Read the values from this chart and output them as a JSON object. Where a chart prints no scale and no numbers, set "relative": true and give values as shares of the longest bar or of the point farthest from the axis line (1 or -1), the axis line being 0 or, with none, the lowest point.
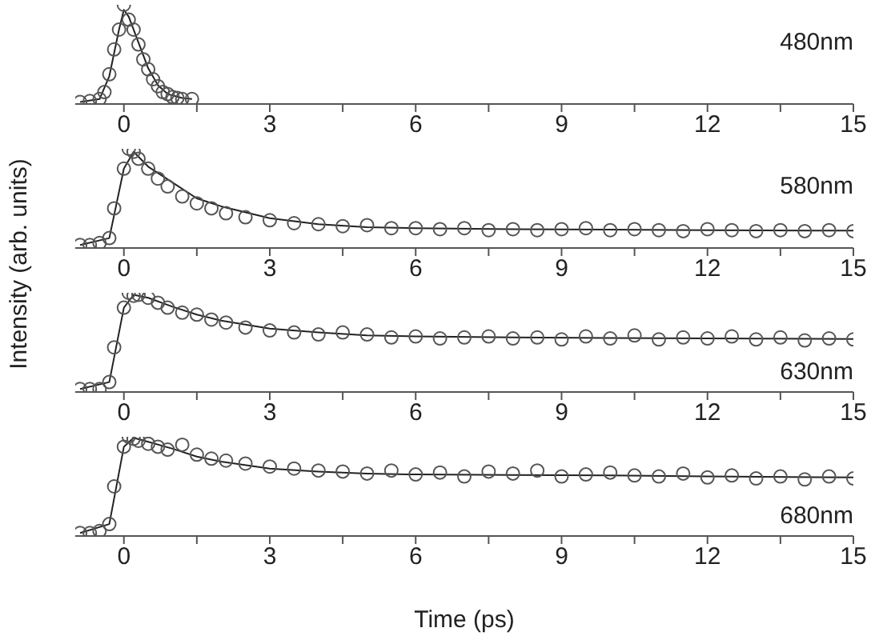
{
  "chart_data": [
    {
      "type": "scatter",
      "relative": true,
      "xlim": [
        -1,
        15
      ],
      "xticks": [
        0,
        {
          "value": 1.5,
          "label": null
        },
        3,
        {
          "value": 4.5,
          "label": null
        },
        6,
        {
          "value": 7.5,
          "label": null
        },
        9,
        {
          "value": 10.5,
          "label": null
        },
        12,
        {
          "value": 13.5,
          "label": null
        },
        15
      ],
      "tick_labels": "x",
      "grid": false,
      "legend": false,
      "annotations": [
        "480nm"
      ],
      "series": [
        {
          "color": "#555555",
          "marker": "circle",
          "x": [
            -0.9,
            -0.7,
            -0.5,
            -0.4,
            -0.3,
            -0.2,
            -0.1,
            0,
            0.1,
            0.2,
            0.3,
            0.4,
            0.5,
            0.6,
            0.7,
            0.8,
            0.9,
            1.0,
            1.1,
            1.2,
            1.4
          ],
          "values": [
            0.02,
            0.03,
            0.05,
            0.12,
            0.3,
            0.55,
            0.75,
            1,
            0.85,
            0.75,
            0.6,
            0.45,
            0.35,
            0.25,
            0.18,
            0.12,
            0.1,
            0.07,
            0.06,
            0.05,
            0.05
          ]
        },
        {
          "type": "line",
          "marker": "none",
          "color": "#222222",
          "x": [
            -0.9,
            -0.5,
            -0.3,
            -0.1,
            0,
            0.1,
            0.3,
            0.5,
            0.7,
            0.9,
            1.2,
            1.4
          ],
          "values": [
            0.02,
            0.05,
            0.28,
            0.75,
            0.95,
            0.88,
            0.62,
            0.36,
            0.19,
            0.1,
            0.06,
            0.05
          ]
        }
      ]
    },
    {
      "type": "scatter",
      "relative": true,
      "xlim": [
        -1,
        15
      ],
      "xticks": [
        0,
        {
          "value": 1.5,
          "label": null
        },
        3,
        {
          "value": 4.5,
          "label": null
        },
        6,
        {
          "value": 7.5,
          "label": null
        },
        9,
        {
          "value": 10.5,
          "label": null
        },
        12,
        {
          "value": 13.5,
          "label": null
        },
        15
      ],
      "tick_labels": "x",
      "grid": false,
      "legend": false,
      "annotations": [
        "580nm"
      ],
      "ylabel": "Intensity (arb. units)",
      "series": [
        {
          "color": "#555555",
          "x": [
            -0.9,
            -0.7,
            -0.5,
            -0.3,
            -0.2,
            0,
            0.1,
            0.2,
            0.3,
            0.5,
            0.7,
            0.9,
            1.2,
            1.5,
            1.8,
            2.1,
            2.5,
            3,
            3.5,
            4,
            4.5,
            5,
            5.5,
            6,
            6.5,
            7,
            7.5,
            8,
            8.5,
            9,
            9.5,
            10,
            10.5,
            11,
            11.5,
            12,
            12.5,
            13,
            13.5,
            14,
            14.5,
            15
          ],
          "marker": "circle",
          "values": [
            0.03,
            0.03,
            0.05,
            0.1,
            0.4,
            0.8,
            1,
            0.97,
            0.9,
            0.8,
            0.7,
            0.62,
            0.52,
            0.45,
            0.4,
            0.35,
            0.31,
            0.28,
            0.25,
            0.24,
            0.22,
            0.23,
            0.2,
            0.2,
            0.19,
            0.2,
            0.18,
            0.19,
            0.18,
            0.19,
            0.2,
            0.18,
            0.19,
            0.18,
            0.17,
            0.19,
            0.18,
            0.17,
            0.18,
            0.17,
            0.18,
            0.17
          ]
        },
        {
          "type": "line",
          "marker": "none",
          "color": "#222222",
          "x": [
            -0.9,
            -0.3,
            0,
            0.2,
            0.5,
            1,
            1.5,
            2,
            3,
            4,
            5,
            6,
            8,
            10,
            12,
            15
          ],
          "values": [
            0.03,
            0.1,
            0.8,
            0.97,
            0.82,
            0.66,
            0.5,
            0.42,
            0.3,
            0.24,
            0.21,
            0.2,
            0.19,
            0.185,
            0.18,
            0.175
          ]
        }
      ]
    },
    {
      "type": "scatter",
      "relative": true,
      "xlim": [
        -1,
        15
      ],
      "xticks": [
        0,
        {
          "value": 1.5,
          "label": null
        },
        3,
        {
          "value": 4.5,
          "label": null
        },
        6,
        {
          "value": 7.5,
          "label": null
        },
        9,
        {
          "value": 10.5,
          "label": null
        },
        12,
        {
          "value": 13.5,
          "label": null
        },
        15
      ],
      "tick_labels": "x",
      "grid": false,
      "legend": false,
      "annotations": [
        "630nm"
      ],
      "series": [
        {
          "color": "#555555",
          "x": [
            -0.9,
            -0.7,
            -0.5,
            -0.3,
            -0.2,
            0,
            0.1,
            0.2,
            0.3,
            0.5,
            0.7,
            0.9,
            1.2,
            1.5,
            1.8,
            2.1,
            2.5,
            3,
            3.5,
            4,
            4.5,
            5,
            5.5,
            6,
            6.5,
            7,
            7.5,
            8,
            8.5,
            9,
            9.5,
            10,
            10.5,
            11,
            11.5,
            12,
            12.5,
            13,
            13.5,
            14,
            14.5,
            15
          ],
          "marker": "circle",
          "values": [
            0.03,
            0.03,
            0.03,
            0.1,
            0.45,
            0.85,
            1,
            0.97,
            0.98,
            0.95,
            0.9,
            0.85,
            0.8,
            0.78,
            0.73,
            0.7,
            0.65,
            0.62,
            0.6,
            0.58,
            0.6,
            0.58,
            0.55,
            0.56,
            0.54,
            0.55,
            0.56,
            0.54,
            0.55,
            0.53,
            0.56,
            0.54,
            0.57,
            0.53,
            0.55,
            0.54,
            0.56,
            0.53,
            0.55,
            0.52,
            0.54,
            0.53
          ]
        },
        {
          "type": "line",
          "marker": "none",
          "color": "#222222",
          "x": [
            -0.9,
            -0.3,
            0,
            0.2,
            0.5,
            1,
            1.5,
            2,
            3,
            4,
            5,
            6,
            8,
            10,
            12,
            15
          ],
          "values": [
            0.03,
            0.1,
            0.85,
            0.98,
            0.95,
            0.86,
            0.78,
            0.72,
            0.64,
            0.6,
            0.57,
            0.56,
            0.55,
            0.545,
            0.54,
            0.535
          ]
        }
      ]
    },
    {
      "type": "scatter",
      "relative": true,
      "xlim": [
        -1,
        15
      ],
      "xticks": [
        0,
        {
          "value": 1.5,
          "label": null
        },
        3,
        {
          "value": 4.5,
          "label": null
        },
        6,
        {
          "value": 7.5,
          "label": null
        },
        9,
        {
          "value": 10.5,
          "label": null
        },
        12,
        {
          "value": 13.5,
          "label": null
        },
        15
      ],
      "tick_labels": "x",
      "grid": false,
      "legend": false,
      "annotations": [
        "680nm"
      ],
      "xlabel": "Time (ps)",
      "series": [
        {
          "color": "#555555",
          "x": [
            -0.9,
            -0.7,
            -0.5,
            -0.3,
            -0.2,
            0,
            0.1,
            0.2,
            0.3,
            0.5,
            0.7,
            0.9,
            1.2,
            1.5,
            1.8,
            2.1,
            2.5,
            3,
            3.5,
            4,
            4.5,
            5,
            5.5,
            6,
            6.5,
            7,
            7.5,
            8,
            8.5,
            9,
            9.5,
            10,
            10.5,
            11,
            11.5,
            12,
            12.5,
            13,
            13.5,
            14,
            14.5,
            15
          ],
          "marker": "circle",
          "values": [
            0.03,
            0.03,
            0.05,
            0.12,
            0.5,
            0.9,
            1,
            0.98,
            0.96,
            0.93,
            0.9,
            0.87,
            0.92,
            0.82,
            0.78,
            0.76,
            0.73,
            0.7,
            0.68,
            0.66,
            0.65,
            0.63,
            0.66,
            0.62,
            0.64,
            0.6,
            0.65,
            0.63,
            0.66,
            0.6,
            0.62,
            0.64,
            0.61,
            0.6,
            0.63,
            0.59,
            0.61,
            0.58,
            0.6,
            0.57,
            0.6,
            0.58
          ]
        },
        {
          "type": "line",
          "marker": "none",
          "color": "#222222",
          "x": [
            -0.9,
            -0.3,
            0,
            0.2,
            0.5,
            1,
            1.5,
            2,
            3,
            4,
            5,
            6,
            8,
            10,
            12,
            15
          ],
          "values": [
            0.03,
            0.12,
            0.9,
            0.99,
            0.95,
            0.88,
            0.8,
            0.75,
            0.68,
            0.65,
            0.63,
            0.62,
            0.615,
            0.61,
            0.6,
            0.59
          ]
        }
      ]
    }
  ]
}
